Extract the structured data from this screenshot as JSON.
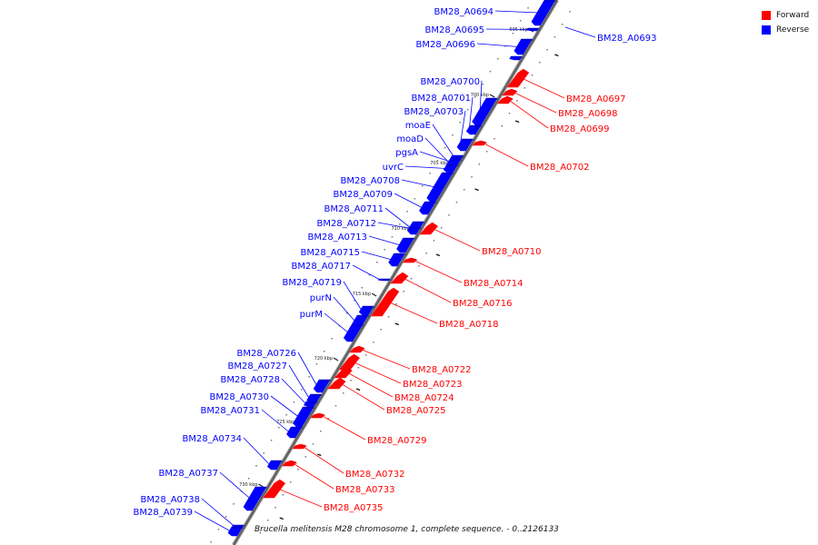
{
  "legend": {
    "forward_label": "Forward",
    "reverse_label": "Reverse",
    "forward_color": "#ff0000",
    "reverse_color": "#0000ff"
  },
  "caption": "Brucella melitensis M28 chromosome 1, complete sequence. - 0..2126133",
  "ticks": [
    "695 kbp",
    "700 kbp",
    "705 kbp",
    "710 kbp",
    "715 kbp",
    "720 kbp",
    "725 kbp",
    "730 kbp"
  ],
  "reverse_genes": [
    {
      "name": "BM28_A0694"
    },
    {
      "name": "BM28_A0695"
    },
    {
      "name": "BM28_A0696"
    },
    {
      "name": "BM28_A0700"
    },
    {
      "name": "BM28_A0701"
    },
    {
      "name": "BM28_A0703"
    },
    {
      "name": "moaE"
    },
    {
      "name": "moaD"
    },
    {
      "name": "pgsA"
    },
    {
      "name": "uvrC"
    },
    {
      "name": "BM28_A0708"
    },
    {
      "name": "BM28_A0709"
    },
    {
      "name": "BM28_A0711"
    },
    {
      "name": "BM28_A0712"
    },
    {
      "name": "BM28_A0713"
    },
    {
      "name": "BM28_A0715"
    },
    {
      "name": "BM28_A0717"
    },
    {
      "name": "BM28_A0719"
    },
    {
      "name": "purN"
    },
    {
      "name": "purM"
    },
    {
      "name": "BM28_A0726"
    },
    {
      "name": "BM28_A0727"
    },
    {
      "name": "BM28_A0728"
    },
    {
      "name": "BM28_A0730"
    },
    {
      "name": "BM28_A0731"
    },
    {
      "name": "BM28_A0734"
    },
    {
      "name": "BM28_A0737"
    },
    {
      "name": "BM28_A0738"
    },
    {
      "name": "BM28_A0739"
    },
    {
      "name": "BM28_A0693"
    }
  ],
  "forward_genes": [
    {
      "name": "BM28_A0697"
    },
    {
      "name": "BM28_A0698"
    },
    {
      "name": "BM28_A0699"
    },
    {
      "name": "BM28_A0702"
    },
    {
      "name": "BM28_A0710"
    },
    {
      "name": "BM28_A0714"
    },
    {
      "name": "BM28_A0716"
    },
    {
      "name": "BM28_A0718"
    },
    {
      "name": "BM28_A0722"
    },
    {
      "name": "BM28_A0723"
    },
    {
      "name": "BM28_A0724"
    },
    {
      "name": "BM28_A0725"
    },
    {
      "name": "BM28_A0729"
    },
    {
      "name": "BM28_A0732"
    },
    {
      "name": "BM28_A0733"
    },
    {
      "name": "BM28_A0735"
    }
  ]
}
